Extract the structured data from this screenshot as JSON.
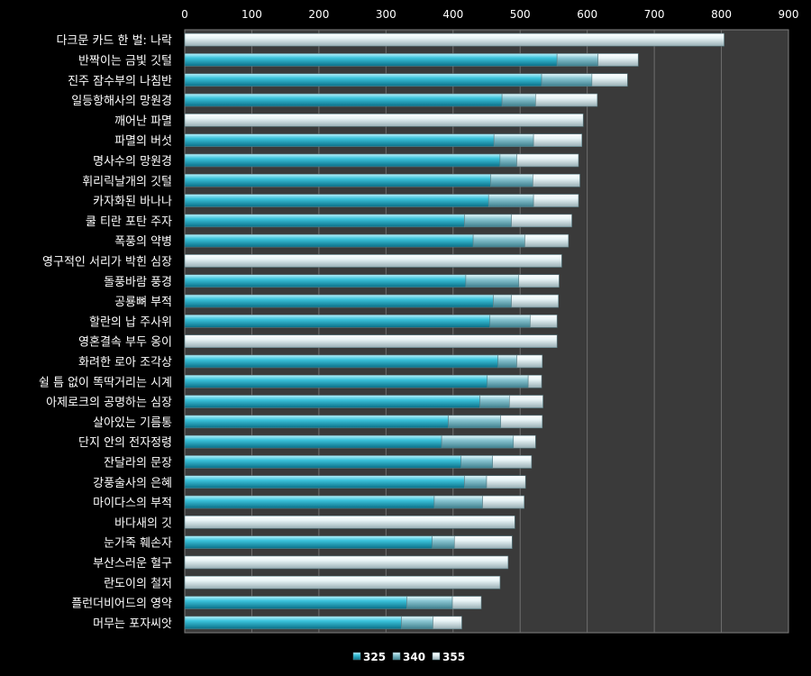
{
  "chart_data": {
    "type": "bar",
    "orientation": "horizontal",
    "stacked": true,
    "xlim": [
      0,
      900
    ],
    "x_ticks": [
      0,
      100,
      200,
      300,
      400,
      500,
      600,
      700,
      800,
      900
    ],
    "x_axis_position": "top",
    "grid": true,
    "legend_position": "bottom",
    "categories": [
      "다크문 카드 한 벌: 나락",
      "반짝이는 금빛 깃털",
      "진주 잠수부의 나침반",
      "일등항해사의 망원경",
      "깨어난 파멸",
      "파멸의 버섯",
      "명사수의 망원경",
      "휘리릭날개의 깃털",
      "카자화된 바나나",
      "쿨 티란 포탄 주자",
      "폭풍의 약병",
      "영구적인 서리가 박힌 심장",
      "돌풍바람 풍경",
      "공룡뼈 부적",
      "할란의 납 주사위",
      "영혼결속 부두 옹이",
      "화려한 로아 조각상",
      "쉴 틈 없이 똑딱거리는 시계",
      "아제로크의 공명하는 심장",
      "살아있는 기름통",
      "단지 안의 전자정령",
      "잔달라의 문장",
      "강풍술사의 은혜",
      "마이다스의 부적",
      "바다새의 깃",
      "눈가죽 훼손자",
      "부산스러운 혈구",
      "란도이의 철저",
      "플런더비어드의 영약",
      "머무는 포자씨앗"
    ],
    "series": [
      {
        "name": "325",
        "color": "#3cc4dc",
        "values": [
          0,
          555,
          532,
          473,
          0,
          461,
          470,
          456,
          453,
          417,
          430,
          0,
          419,
          460,
          455,
          0,
          467,
          451,
          440,
          393,
          383,
          412,
          417,
          372,
          0,
          369,
          0,
          0,
          331,
          323
        ]
      },
      {
        "name": "340",
        "color": "#8cc8d4",
        "values": [
          0,
          61,
          75,
          50,
          0,
          59,
          25,
          63,
          67,
          70,
          77,
          0,
          79,
          27,
          60,
          0,
          28,
          61,
          44,
          78,
          107,
          47,
          33,
          72,
          0,
          33,
          0,
          0,
          68,
          47
        ]
      },
      {
        "name": "355",
        "color": "#e8f4f6",
        "values": [
          804,
          60,
          53,
          92,
          594,
          72,
          92,
          70,
          67,
          90,
          65,
          562,
          60,
          70,
          40,
          555,
          38,
          20,
          50,
          62,
          33,
          58,
          58,
          62,
          492,
          86,
          482,
          470,
          43,
          43
        ]
      }
    ]
  }
}
